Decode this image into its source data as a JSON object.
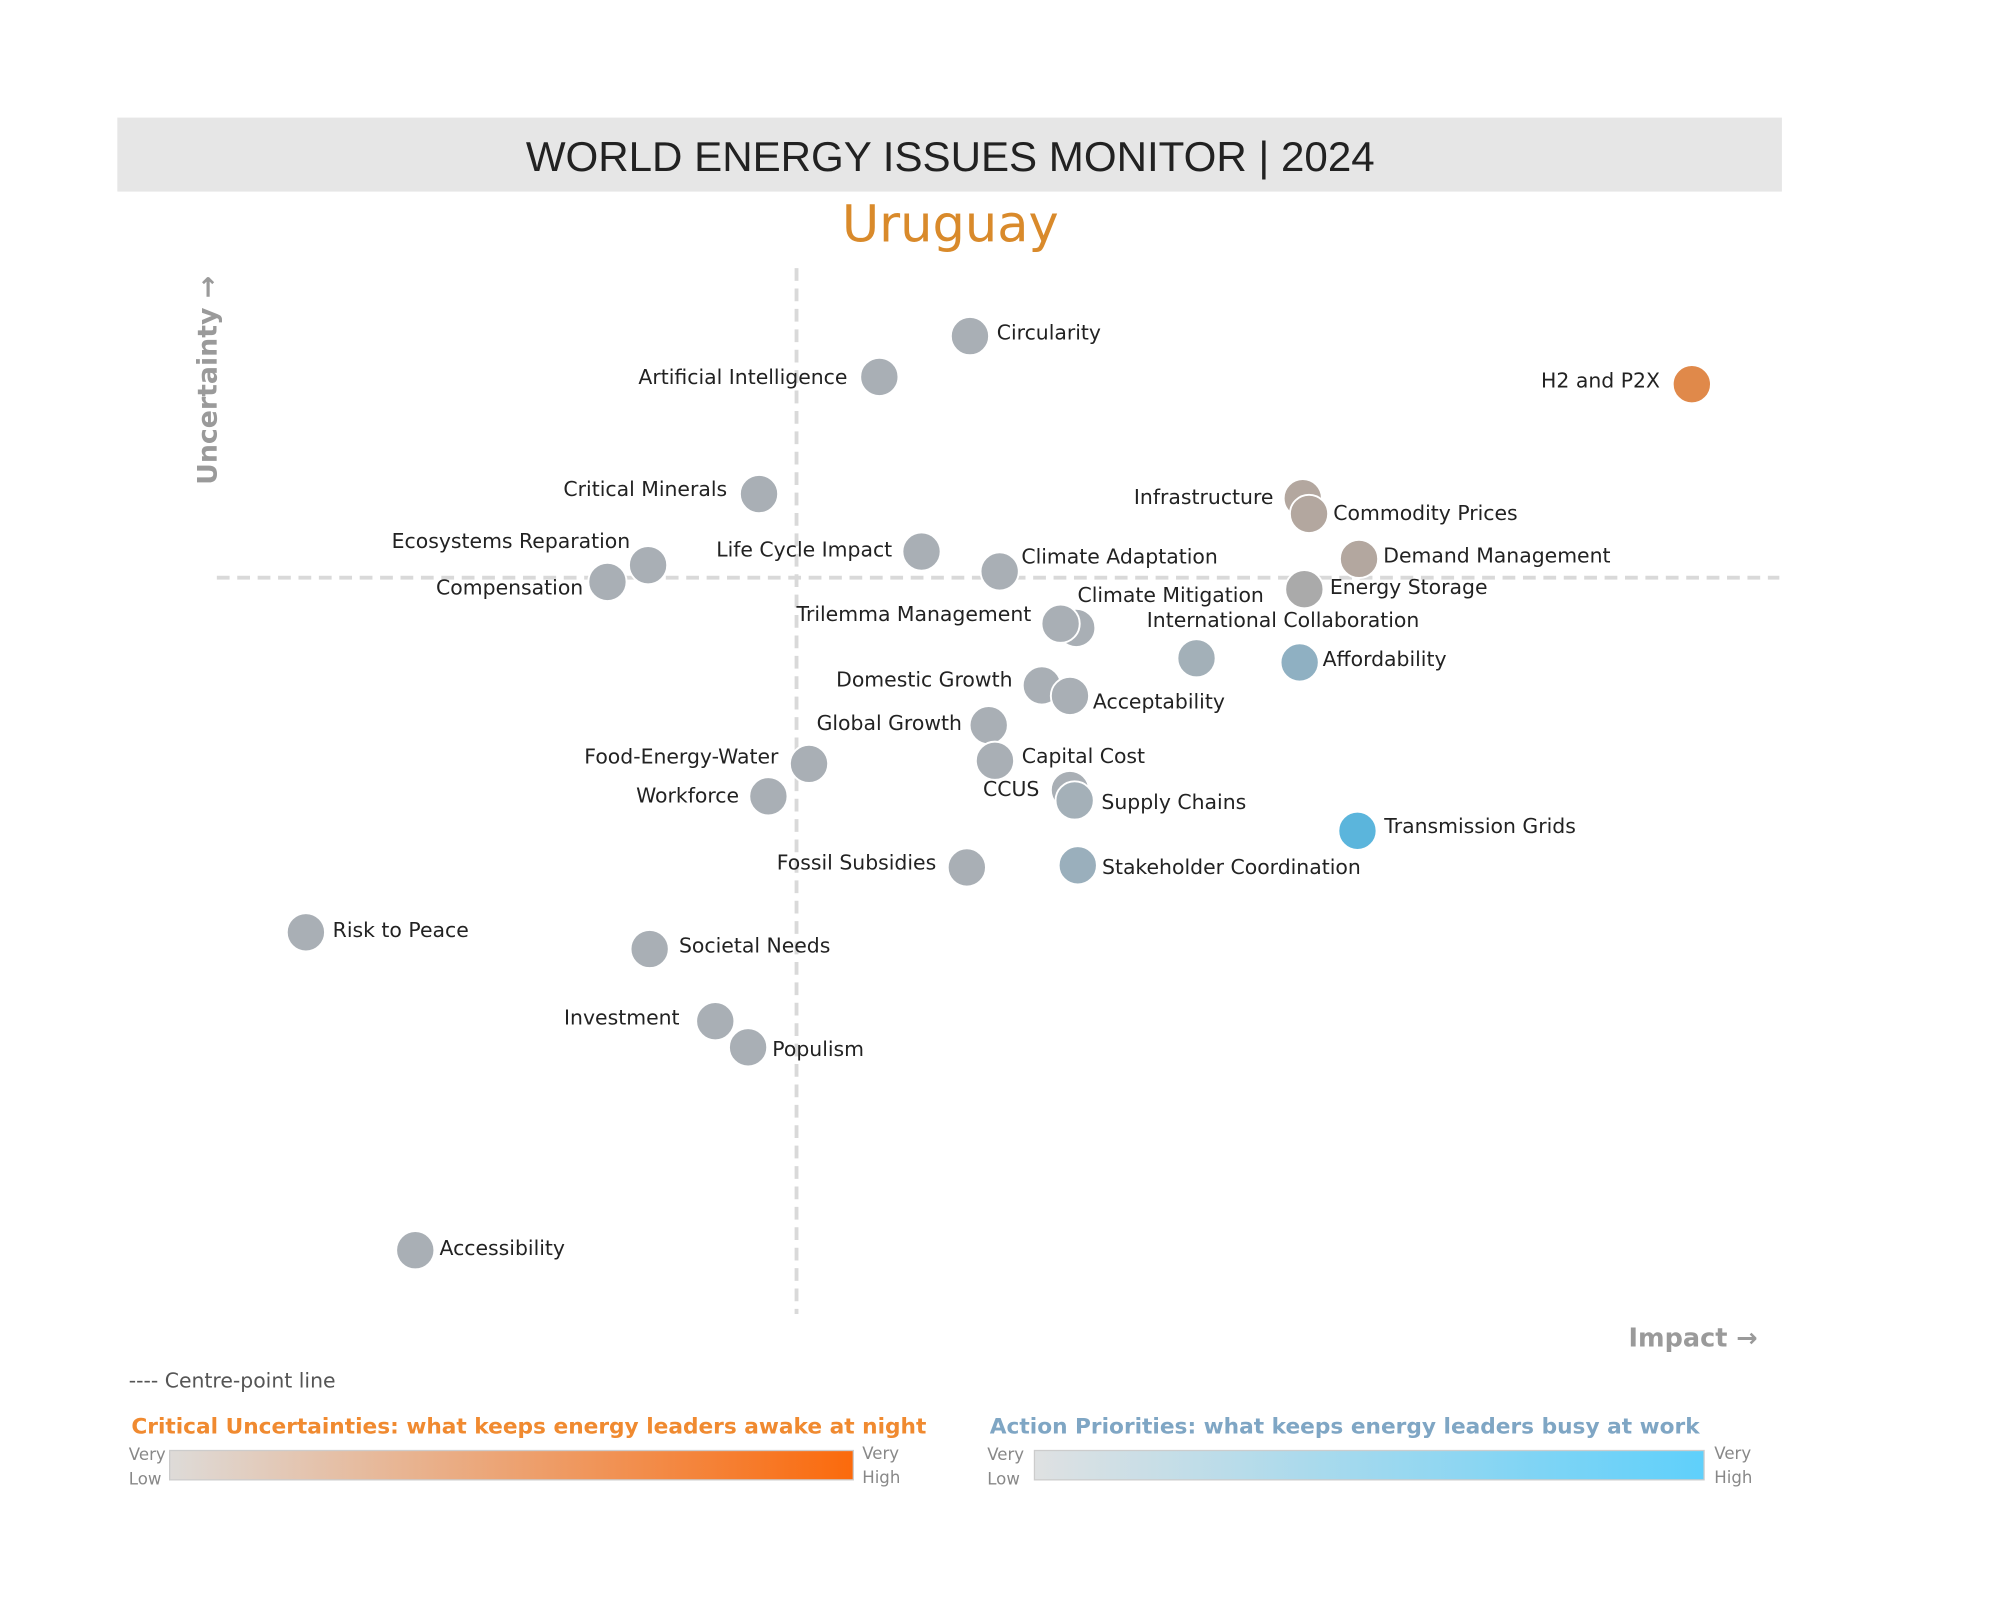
{
  "chart_data": {
    "type": "scatter",
    "title": "WORLD ENERGY ISSUES MONITOR | 2024",
    "subtitle": "Uruguay",
    "xlabel": "Impact →",
    "ylabel": "Uncertainty →",
    "xlim": [
      0,
      100
    ],
    "ylim": [
      0,
      100
    ],
    "centre": {
      "x": 37.1,
      "y": 70.4
    },
    "centre_line_label": "---- Centre-point line",
    "labels": [
      "Circularity",
      "Artificial Intelligence",
      "H2 and P2X",
      "Critical Minerals",
      "Infrastructure",
      "Commodity Prices",
      "Ecosystems Reparation",
      "Life Cycle Impact",
      "Climate Adaptation",
      "Demand Management",
      "Compensation",
      "Energy Storage",
      "Climate Mitigation",
      "Trilemma Management",
      "International Collaboration",
      "Affordability",
      "Domestic Growth",
      "Acceptability",
      "Global Growth",
      "Food-Energy-Water",
      "Capital Cost",
      "CCUS",
      "Supply Chains",
      "Workforce",
      "Transmission Grids",
      "Fossil Subsidies",
      "Stakeholder Coordination",
      "Risk to Peace",
      "Societal Needs",
      "Investment",
      "Populism",
      "Accessibility"
    ],
    "x": [
      48.2,
      42.4,
      94.4,
      34.7,
      69.5,
      69.9,
      27.6,
      45.1,
      50.1,
      73.1,
      25.0,
      69.6,
      55.0,
      54.0,
      62.7,
      69.3,
      52.8,
      54.6,
      49.4,
      37.9,
      49.8,
      54.6,
      54.9,
      35.3,
      73.0,
      48.0,
      55.1,
      5.7,
      27.7,
      31.9,
      34.0,
      12.7
    ],
    "values": [
      93.5,
      89.6,
      88.9,
      78.4,
      78.0,
      76.5,
      71.6,
      72.9,
      71.0,
      72.2,
      70.0,
      69.3,
      65.6,
      66.0,
      62.7,
      62.3,
      60.1,
      59.1,
      56.3,
      52.6,
      52.9,
      50.1,
      49.1,
      49.5,
      46.2,
      42.7,
      42.9,
      36.5,
      34.9,
      28.0,
      25.5,
      6.1
    ],
    "colors": [
      "#a9afb5",
      "#a9afb5",
      "#e0894a",
      "#a9afb5",
      "#b3a79f",
      "#b3a79f",
      "#a9afb5",
      "#a9afb5",
      "#a9afb5",
      "#b3a79f",
      "#a9afb5",
      "#aaaaaa",
      "#a9afb5",
      "#a9afb5",
      "#a3b0b8",
      "#8fb0c2",
      "#a9afb5",
      "#a9afb5",
      "#a9afb5",
      "#a9afb5",
      "#a9afb5",
      "#a9afb5",
      "#a4b0b8",
      "#a9afb5",
      "#5bb5dc",
      "#a9afb5",
      "#9aafbc",
      "#a9afb5",
      "#a9afb5",
      "#a9afb5",
      "#a9afb5",
      "#a9afb5"
    ],
    "legends": [
      {
        "title": "Critical Uncertainties: what keeps energy leaders awake at night",
        "title_color": "#f08a30",
        "low": [
          "Very",
          "Low"
        ],
        "high": [
          "Very",
          "High"
        ],
        "colors": [
          "#dedbd8",
          "#fb6a0c"
        ]
      },
      {
        "title": "Action Priorities: what keeps energy leaders busy at work",
        "title_color": "#7fa6c4",
        "low": [
          "Very",
          "Low"
        ],
        "high": [
          "Very",
          "High"
        ],
        "colors": [
          "#dfe1e2",
          "#5fd0fb"
        ]
      }
    ]
  }
}
